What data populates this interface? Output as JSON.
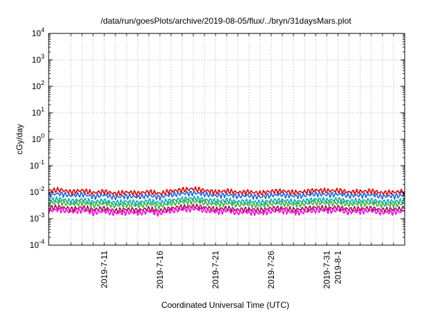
{
  "chart_data": {
    "type": "line",
    "title": "/data/run/goesPlots/archive/2019-08-05/flux/../bryn/31daysMars.plot",
    "xlabel": "Coordinated Universal Time (UTC)",
    "ylabel": "cGy/day",
    "yscale": "log",
    "ylim": [
      0.0001,
      10000
    ],
    "xlim": [
      6.0,
      38.0
    ],
    "x_unit": "days since 2019-07-01",
    "grid": true,
    "legend": "none",
    "y_ticks": [
      {
        "value": 0.0001,
        "base": "10",
        "exp": "-4"
      },
      {
        "value": 0.001,
        "base": "10",
        "exp": "-3"
      },
      {
        "value": 0.01,
        "base": "10",
        "exp": "-2"
      },
      {
        "value": 0.1,
        "base": "10",
        "exp": "-1"
      },
      {
        "value": 1,
        "base": "10",
        "exp": "0"
      },
      {
        "value": 10,
        "base": "10",
        "exp": "1"
      },
      {
        "value": 100,
        "base": "10",
        "exp": "2"
      },
      {
        "value": 1000,
        "base": "10",
        "exp": "3"
      },
      {
        "value": 10000,
        "base": "10",
        "exp": "4"
      }
    ],
    "x_ticks": [
      {
        "value": 11,
        "label": "2019-7-11"
      },
      {
        "value": 16,
        "label": "2019-7-16"
      },
      {
        "value": 21,
        "label": "2019-7-21"
      },
      {
        "value": 26,
        "label": "2019-7-26"
      },
      {
        "value": 31,
        "label": "2019-7-31"
      },
      {
        "value": 32,
        "label": "2019-8-1"
      }
    ],
    "x_grid": [
      8,
      9,
      10,
      11,
      12,
      13,
      14,
      15,
      16,
      17,
      18,
      19,
      20,
      21,
      22,
      23,
      24,
      25,
      26,
      27,
      28,
      29,
      30,
      31,
      32,
      33,
      34,
      35,
      36,
      37
    ],
    "series": [
      {
        "color": "#e00000",
        "values": [
          0.0115,
          0.0125,
          0.0102,
          0.0118,
          0.0095,
          0.0108,
          0.0088,
          0.0101,
          0.0092,
          0.0105,
          0.0089,
          0.0112,
          0.0124,
          0.0135,
          0.0118,
          0.0102,
          0.0113,
          0.0098,
          0.0104,
          0.0092,
          0.0109,
          0.0112,
          0.0098,
          0.0105,
          0.0121,
          0.0113,
          0.0118,
          0.0102,
          0.0106,
          0.0112,
          0.0095,
          0.0101,
          0.0108
        ]
      },
      {
        "color": "#2060e0",
        "values": [
          0.0082,
          0.0089,
          0.0074,
          0.0084,
          0.0069,
          0.0078,
          0.0064,
          0.0073,
          0.0066,
          0.0075,
          0.0065,
          0.0081,
          0.0089,
          0.0096,
          0.0085,
          0.0074,
          0.0081,
          0.0071,
          0.0075,
          0.0066,
          0.0078,
          0.0081,
          0.0071,
          0.0076,
          0.0087,
          0.0081,
          0.0085,
          0.0074,
          0.0077,
          0.0081,
          0.0069,
          0.0073,
          0.0078
        ]
      },
      {
        "color": "#00b0b0",
        "values": [
          0.0051,
          0.0055,
          0.0046,
          0.0052,
          0.0043,
          0.0048,
          0.004,
          0.0045,
          0.0041,
          0.0047,
          0.004,
          0.005,
          0.0055,
          0.006,
          0.0053,
          0.0046,
          0.005,
          0.0044,
          0.0046,
          0.0041,
          0.0048,
          0.005,
          0.0044,
          0.0047,
          0.0054,
          0.005,
          0.0053,
          0.0046,
          0.0048,
          0.005,
          0.0043,
          0.0045,
          0.0048
        ]
      },
      {
        "color": "#40b040",
        "values": [
          0.0039,
          0.0042,
          0.0035,
          0.004,
          0.0033,
          0.0037,
          0.0031,
          0.0034,
          0.0031,
          0.0036,
          0.003,
          0.0038,
          0.0042,
          0.0046,
          0.004,
          0.0035,
          0.0038,
          0.0034,
          0.0035,
          0.0031,
          0.0037,
          0.0038,
          0.0034,
          0.0036,
          0.0041,
          0.0038,
          0.004,
          0.0035,
          0.0037,
          0.0038,
          0.0033,
          0.0034,
          0.0037
        ]
      },
      {
        "color": "#a01050",
        "values": [
          0.0026,
          0.0028,
          0.0023,
          0.0027,
          0.0022,
          0.0025,
          0.002,
          0.0023,
          0.0021,
          0.0024,
          0.002,
          0.0025,
          0.0028,
          0.003,
          0.0027,
          0.0023,
          0.0025,
          0.0022,
          0.0023,
          0.0021,
          0.0025,
          0.0025,
          0.0022,
          0.0024,
          0.0027,
          0.0025,
          0.0027,
          0.0023,
          0.0024,
          0.0025,
          0.0022,
          0.0023,
          0.0024
        ]
      },
      {
        "color": "#ff00e0",
        "values": [
          0.002,
          0.0022,
          0.0018,
          0.0021,
          0.0017,
          0.0019,
          0.0016,
          0.0018,
          0.0016,
          0.0019,
          0.0016,
          0.002,
          0.0022,
          0.0024,
          0.0021,
          0.0018,
          0.002,
          0.0017,
          0.0018,
          0.0016,
          0.0019,
          0.002,
          0.0017,
          0.0018,
          0.0021,
          0.002,
          0.0021,
          0.0018,
          0.0019,
          0.002,
          0.0017,
          0.0018,
          0.0019
        ]
      }
    ]
  }
}
